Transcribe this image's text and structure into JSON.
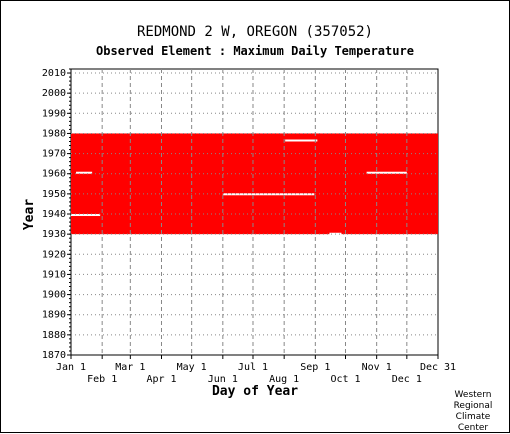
{
  "chart_data": {
    "type": "area",
    "title": "REDMOND 2 W, OREGON   (357052)",
    "subtitle": "Observed Element : Maximum Daily Temperature",
    "xlabel": "Day of Year",
    "ylabel": "Year",
    "ylim": [
      1870,
      2012
    ],
    "yticks": [
      1870,
      1880,
      1890,
      1900,
      1910,
      1920,
      1930,
      1940,
      1950,
      1960,
      1970,
      1980,
      1990,
      2000,
      2010
    ],
    "xlim": [
      1,
      366
    ],
    "x_ticks_top_row": [
      {
        "day": 1,
        "label": "Jan 1"
      },
      {
        "day": 60,
        "label": "Mar 1"
      },
      {
        "day": 121,
        "label": "May 1"
      },
      {
        "day": 182,
        "label": "Jul 1"
      },
      {
        "day": 244,
        "label": "Sep 1"
      },
      {
        "day": 305,
        "label": "Nov 1"
      },
      {
        "day": 366,
        "label": "Dec 31"
      }
    ],
    "x_ticks_bottom_row": [
      {
        "day": 32,
        "label": "Feb 1"
      },
      {
        "day": 91,
        "label": "Apr 1"
      },
      {
        "day": 152,
        "label": "Jun 1"
      },
      {
        "day": 213,
        "label": "Aug 1"
      },
      {
        "day": 274,
        "label": "Oct 1"
      },
      {
        "day": 335,
        "label": "Dec 1"
      }
    ],
    "series": [
      {
        "color": "#ff0000",
        "year_start": 1930,
        "year_end": 1980,
        "day_start": 1,
        "day_end": 366
      }
    ],
    "missing_data_gaps": [
      {
        "year": 1939.5,
        "day_start": 1,
        "day_end": 30
      },
      {
        "year": 1949.8,
        "day_start": 152,
        "day_end": 243
      },
      {
        "year": 1960.5,
        "day_start": 6,
        "day_end": 22
      },
      {
        "year": 1960.5,
        "day_start": 295,
        "day_end": 335
      },
      {
        "year": 1976.5,
        "day_start": 214,
        "day_end": 246
      },
      {
        "year": 1930.2,
        "day_start": 258,
        "day_end": 270
      }
    ],
    "grid": true
  },
  "credit": [
    "Western",
    "Regional",
    "Climate",
    "Center"
  ]
}
